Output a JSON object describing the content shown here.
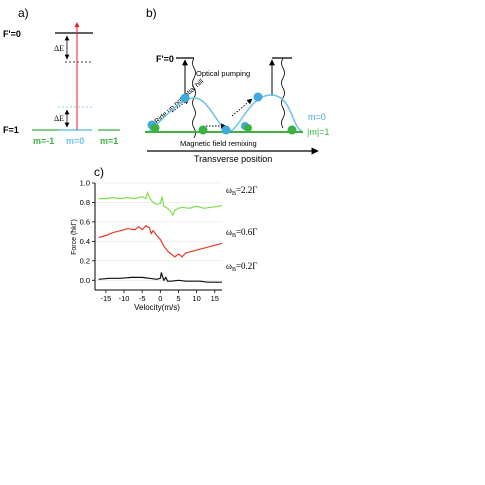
{
  "panel_a": {
    "label": "a)",
    "upper_level": "F'=0",
    "lower_level": "F=1",
    "delta_e_upper": "ΔE",
    "delta_e_lower": "ΔE",
    "sublevels": [
      "m=-1",
      "m=0",
      "m=1"
    ]
  },
  "panel_b": {
    "label": "b)",
    "upper_level": "F'=0",
    "optical_pumping": "Optical pumping",
    "ride_up": "Ride up potential hill",
    "m_zero": "m=0",
    "m_abs_one": "|m|=1",
    "remixing": "Magnetic field remixing",
    "transverse": "Transverse position"
  },
  "panel_c": {
    "label": "c)",
    "chart_data": {
      "type": "line",
      "xlabel": "Velocity(m/s)",
      "ylabel": "Force (ħkΓ)",
      "xlim": [
        -18,
        17
      ],
      "ylim": [
        -0.1,
        1.0
      ],
      "xticks": [
        -15,
        -10,
        -5,
        0,
        5,
        10,
        15
      ],
      "yticks": [
        0.0,
        0.2,
        0.4,
        0.6,
        0.8,
        1.0
      ],
      "series": [
        {
          "name": "ω_B=2.2Γ",
          "color": "#7ee04a",
          "x": [
            -17,
            -15,
            -13,
            -11,
            -9,
            -7,
            -5,
            -4,
            -3.5,
            -3,
            -2,
            -1,
            0,
            0.5,
            1,
            2,
            3,
            3.5,
            4,
            5,
            6,
            8,
            10,
            12,
            14,
            16,
            17
          ],
          "y": [
            0.84,
            0.84,
            0.85,
            0.84,
            0.85,
            0.84,
            0.86,
            0.84,
            0.9,
            0.85,
            0.8,
            0.78,
            0.79,
            0.86,
            0.76,
            0.74,
            0.7,
            0.67,
            0.72,
            0.74,
            0.75,
            0.74,
            0.76,
            0.74,
            0.75,
            0.76,
            0.77
          ]
        },
        {
          "name": "ω_B=0.6Γ",
          "color": "#e83a2a",
          "x": [
            -17,
            -15,
            -13,
            -11,
            -9,
            -7,
            -6,
            -5,
            -4,
            -3,
            -2.5,
            -2,
            -1,
            0,
            1,
            2,
            3,
            4,
            5,
            6,
            7,
            8,
            10,
            12,
            14,
            16,
            17
          ],
          "y": [
            0.44,
            0.46,
            0.49,
            0.51,
            0.53,
            0.52,
            0.55,
            0.52,
            0.56,
            0.54,
            0.48,
            0.51,
            0.46,
            0.42,
            0.35,
            0.3,
            0.27,
            0.24,
            0.27,
            0.24,
            0.28,
            0.29,
            0.31,
            0.33,
            0.35,
            0.37,
            0.38
          ]
        },
        {
          "name": "ω_B=0.2Γ",
          "color": "#111111",
          "x": [
            -17,
            -14,
            -11,
            -8,
            -5,
            -3,
            -1,
            0,
            0.3,
            0.6,
            1,
            1.5,
            2,
            3,
            5,
            7,
            9,
            11,
            13,
            15,
            17
          ],
          "y": [
            0.01,
            0.02,
            0.02,
            0.03,
            0.03,
            0.02,
            0.01,
            0.02,
            0.08,
            0.04,
            0.0,
            0.03,
            -0.01,
            -0.01,
            0.0,
            -0.01,
            -0.01,
            -0.01,
            -0.02,
            -0.02,
            -0.02
          ]
        }
      ]
    }
  }
}
